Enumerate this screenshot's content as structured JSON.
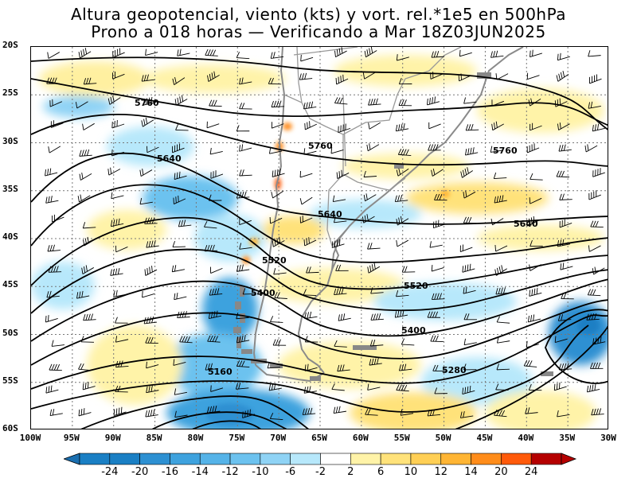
{
  "title": {
    "line1": "Altura geopotencial, viento (kts) y vort. rel.*1e5 en 500hPa",
    "line2": "Prono a 018 horas — Verificando a Mar 18Z03JUN2025"
  },
  "lat_labels": [
    "20S",
    "25S",
    "30S",
    "35S",
    "40S",
    "45S",
    "50S",
    "55S",
    "60S"
  ],
  "lon_labels": [
    "100W",
    "95W",
    "90W",
    "85W",
    "80W",
    "75W",
    "70W",
    "65W",
    "60W",
    "55W",
    "50W",
    "45W",
    "40W",
    "35W",
    "30W"
  ],
  "contour_labels": [
    {
      "text": "5760"
    },
    {
      "text": "5760"
    },
    {
      "text": "5760"
    },
    {
      "text": "5640"
    },
    {
      "text": "5640"
    },
    {
      "text": "5640"
    },
    {
      "text": "5520"
    },
    {
      "text": "5520"
    },
    {
      "text": "5400"
    },
    {
      "text": "5400"
    },
    {
      "text": "5280"
    },
    {
      "text": "5160"
    }
  ],
  "colorbar": {
    "labels": [
      "-24",
      "-20",
      "-16",
      "-14",
      "-12",
      "-10",
      "-6",
      "-2",
      "2",
      "6",
      "10",
      "12",
      "14",
      "20",
      "24"
    ],
    "colors": [
      "#1a7fc4",
      "#2d90d2",
      "#3ea2de",
      "#55b3e8",
      "#6cc2ef",
      "#8fd3f5",
      "#b7e8fb",
      "#ffffff",
      "#fff3a8",
      "#ffe27a",
      "#ffcf55",
      "#ffb534",
      "#ff8c1a",
      "#ff5a0a",
      "#b50000"
    ]
  }
}
